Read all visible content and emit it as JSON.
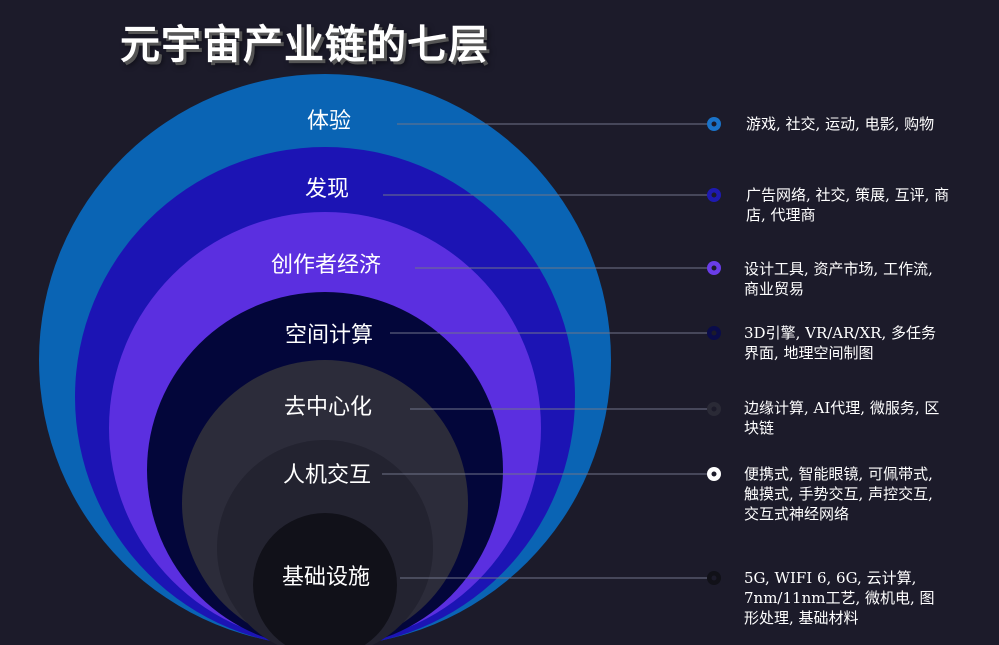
{
  "title": "元宇宙产业链的七层",
  "layers": [
    {
      "name": "体验",
      "color": "#0a64b4",
      "marker_color": "#1a73c9",
      "description": "游戏, 社交, 运动, 电影, 购物"
    },
    {
      "name": "发现",
      "color": "#1c14b4",
      "marker_color": "#1e1ab0",
      "description": "广告网络, 社交, 策展, 互评, 商店, 代理商"
    },
    {
      "name": "创作者经济",
      "color": "#5b2fe0",
      "marker_color": "#6a3de8",
      "description": "设计工具, 资产市场, 工作流, 商业贸易"
    },
    {
      "name": "空间计算",
      "color": "#03063a",
      "marker_color": "#0a0c4a",
      "description": "3D引擎, VR/AR/XR, 多任务界面, 地理空间制图"
    },
    {
      "name": "去中心化",
      "color": "#2c2c3a",
      "marker_color": "#2a2a36",
      "description": "边缘计算, AI代理, 微服务, 区块链"
    },
    {
      "name": "人机交互",
      "color": "#232330",
      "marker_color": "#ffffff",
      "description": "便携式, 智能眼镜, 可佩带式, 触摸式, 手势交互, 声控交互, 交互式神经网络"
    },
    {
      "name": "基础设施",
      "color": "#111119",
      "marker_color": "#111118",
      "description": "5G, WIFI 6, 6G, 云计算, 7nm/11nm工艺, 微机电, 图形处理, 基础材料"
    }
  ]
}
